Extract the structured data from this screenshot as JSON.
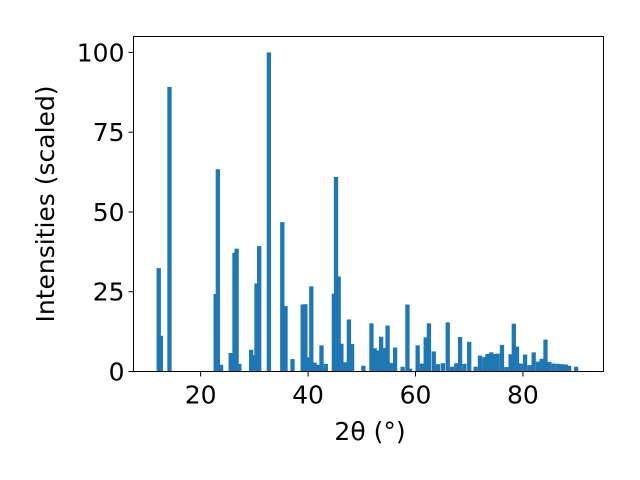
{
  "chart_data": {
    "type": "bar",
    "xlabel": "2θ (°)",
    "ylabel": "Intensities (scaled)",
    "xlim": [
      7.5,
      95
    ],
    "ylim": [
      0,
      105
    ],
    "xticks": [
      "20",
      "40",
      "60",
      "80"
    ],
    "xtick_values": [
      20,
      40,
      60,
      80
    ],
    "yticks": [
      "0",
      "25",
      "50",
      "75",
      "100"
    ],
    "ytick_values": [
      0,
      25,
      50,
      75,
      100
    ],
    "bar_color": "#1f77b4",
    "grid": false,
    "x": [
      12.2,
      12.6,
      14.2,
      22.8,
      23.2,
      23.8,
      25.6,
      26.3,
      26.7,
      27.2,
      29.4,
      29.9,
      30.4,
      30.9,
      32.7,
      35.2,
      35.8,
      37.1,
      39.0,
      39.5,
      40.1,
      40.6,
      41.2,
      41.8,
      42.5,
      43.3,
      44.8,
      45.2,
      45.7,
      46.2,
      47.0,
      47.6,
      48.2,
      50.3,
      51.8,
      52.4,
      53.0,
      53.6,
      54.1,
      54.8,
      55.4,
      56.2,
      57.6,
      58.5,
      59.0,
      60.4,
      61.2,
      61.9,
      62.5,
      63.4,
      64.2,
      65.1,
      66.0,
      66.8,
      67.6,
      68.3,
      69.1,
      70.0,
      71.2,
      72.0,
      72.8,
      73.4,
      74.1,
      74.7,
      75.3,
      76.1,
      76.9,
      77.7,
      78.3,
      78.9,
      79.6,
      80.4,
      81.2,
      82.0,
      82.8,
      83.5,
      84.2,
      84.9,
      85.7,
      86.5,
      87.3,
      88.0,
      88.6,
      89.9
    ],
    "values": [
      32.4,
      11.2,
      89.2,
      24.3,
      63.4,
      2.1,
      5.8,
      37.2,
      38.5,
      2.4,
      6.8,
      5.1,
      27.6,
      39.3,
      100.0,
      46.8,
      20.5,
      3.9,
      21.0,
      21.1,
      4.4,
      26.7,
      2.8,
      2.1,
      8.2,
      2.4,
      24.4,
      61.0,
      29.8,
      8.7,
      2.9,
      16.3,
      8.6,
      1.8,
      15.1,
      7.3,
      6.6,
      10.9,
      7.4,
      14.4,
      2.7,
      7.5,
      1.5,
      21.0,
      0.9,
      8.2,
      2.5,
      10.7,
      15.1,
      6.3,
      2.3,
      2.6,
      15.4,
      1.5,
      2.6,
      10.8,
      2.4,
      9.3,
      1.5,
      5.0,
      4.5,
      5.5,
      6.0,
      5.5,
      5.6,
      8.3,
      1.4,
      5.4,
      15.0,
      7.8,
      2.5,
      5.3,
      2.0,
      6.0,
      3.1,
      4.0,
      10.0,
      3.0,
      2.5,
      2.4,
      2.3,
      2.2,
      1.8,
      1.5
    ]
  }
}
